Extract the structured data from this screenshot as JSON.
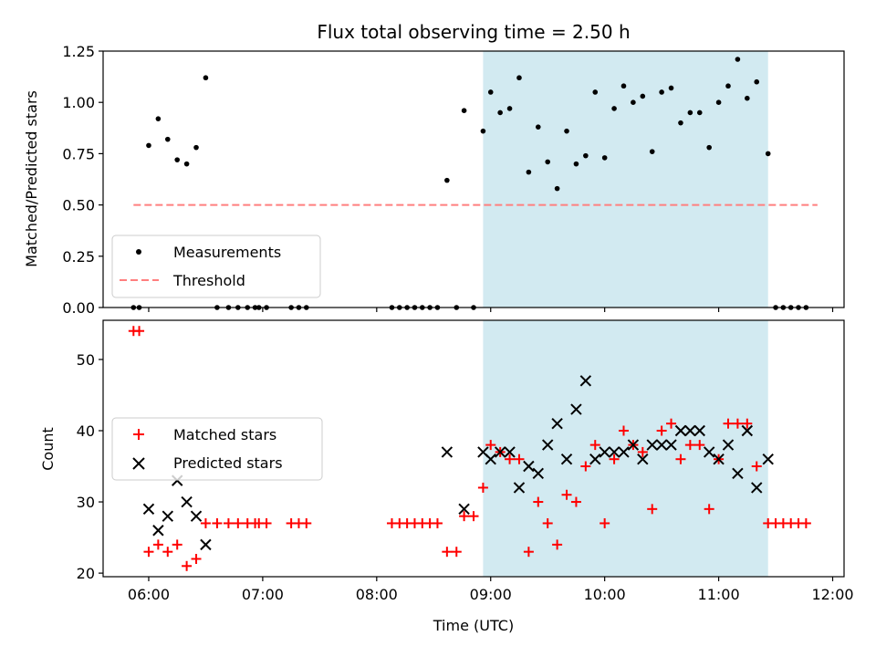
{
  "chart_data": [
    {
      "type": "scatter",
      "title": "Flux total observing time = 2.50 h",
      "xlabel": "",
      "ylabel": "Matched/Predicted stars",
      "x_is_time": true,
      "xlim": [
        "05:36",
        "12:06"
      ],
      "ylim": [
        0,
        1.25
      ],
      "yticks": [
        0.0,
        0.25,
        0.5,
        0.75,
        1.0,
        1.25
      ],
      "ytick_labels": [
        "0.00",
        "0.25",
        "0.50",
        "0.75",
        "1.00",
        "1.25"
      ],
      "xticks": [
        "06:00",
        "07:00",
        "08:00",
        "09:00",
        "10:00",
        "11:00",
        "12:00"
      ],
      "shaded_span": {
        "start": "08:56",
        "end": "11:26",
        "color": "#add8e6"
      },
      "legend_position": "lower left",
      "series": [
        {
          "name": "Measurements",
          "style": "dot",
          "color": "#000000",
          "x": [
            "05:52",
            "05:55",
            "06:00",
            "06:05",
            "06:10",
            "06:15",
            "06:20",
            "06:25",
            "06:30",
            "06:36",
            "06:42",
            "06:47",
            "06:52",
            "06:56",
            "06:58",
            "07:02",
            "07:15",
            "07:19",
            "07:23",
            "08:08",
            "08:12",
            "08:16",
            "08:20",
            "08:24",
            "08:28",
            "08:32",
            "08:37",
            "08:42",
            "08:46",
            "08:51",
            "08:56",
            "09:00",
            "09:05",
            "09:10",
            "09:15",
            "09:20",
            "09:25",
            "09:30",
            "09:35",
            "09:40",
            "09:45",
            "09:50",
            "09:55",
            "10:00",
            "10:05",
            "10:10",
            "10:15",
            "10:20",
            "10:25",
            "10:30",
            "10:35",
            "10:40",
            "10:45",
            "10:50",
            "10:55",
            "11:00",
            "11:05",
            "11:10",
            "11:15",
            "11:20",
            "11:26",
            "11:30",
            "11:34",
            "11:38",
            "11:42",
            "11:46"
          ],
          "y": [
            0,
            0,
            0.79,
            0.92,
            0.82,
            0.72,
            0.7,
            0.78,
            1.12,
            0,
            0,
            0,
            0,
            0,
            0,
            0,
            0,
            0,
            0,
            0,
            0,
            0,
            0,
            0,
            0,
            0,
            0.62,
            0,
            0.96,
            0,
            0.86,
            1.05,
            0.95,
            0.97,
            1.12,
            0.66,
            0.88,
            0.71,
            0.58,
            0.86,
            0.7,
            0.74,
            1.05,
            0.73,
            0.97,
            1.08,
            1.0,
            1.03,
            0.76,
            1.05,
            1.07,
            0.9,
            0.95,
            0.95,
            0.78,
            1.0,
            1.08,
            1.21,
            1.02,
            1.1,
            0.75,
            0,
            0,
            0,
            0,
            0
          ]
        },
        {
          "name": "Threshold",
          "style": "dashed-line",
          "color": "#ff7f7f",
          "x": [
            "05:52",
            "11:52"
          ],
          "y": [
            0.5,
            0.5
          ]
        }
      ]
    },
    {
      "type": "scatter",
      "title": "",
      "xlabel": "Time (UTC)",
      "ylabel": "Count",
      "x_is_time": true,
      "xlim": [
        "05:36",
        "12:06"
      ],
      "ylim": [
        19.5,
        55.5
      ],
      "yticks": [
        20,
        30,
        40,
        50
      ],
      "ytick_labels": [
        "20",
        "30",
        "40",
        "50"
      ],
      "xticks": [
        "06:00",
        "07:00",
        "08:00",
        "09:00",
        "10:00",
        "11:00",
        "12:00"
      ],
      "xtick_labels": [
        "06:00",
        "07:00",
        "08:00",
        "09:00",
        "10:00",
        "11:00",
        "12:00"
      ],
      "shaded_span": {
        "start": "08:56",
        "end": "11:26",
        "color": "#add8e6"
      },
      "legend_position": "center left",
      "series": [
        {
          "name": "Matched stars",
          "style": "plus",
          "color": "#ff0000",
          "x": [
            "05:52",
            "05:55",
            "06:00",
            "06:05",
            "06:10",
            "06:15",
            "06:20",
            "06:25",
            "06:30",
            "06:36",
            "06:42",
            "06:47",
            "06:52",
            "06:56",
            "06:58",
            "07:02",
            "07:15",
            "07:19",
            "07:23",
            "08:08",
            "08:12",
            "08:16",
            "08:20",
            "08:24",
            "08:28",
            "08:32",
            "08:37",
            "08:42",
            "08:46",
            "08:51",
            "08:56",
            "09:00",
            "09:05",
            "09:10",
            "09:15",
            "09:20",
            "09:25",
            "09:30",
            "09:35",
            "09:40",
            "09:45",
            "09:50",
            "09:55",
            "10:00",
            "10:05",
            "10:10",
            "10:15",
            "10:20",
            "10:25",
            "10:30",
            "10:35",
            "10:40",
            "10:45",
            "10:50",
            "10:55",
            "11:00",
            "11:05",
            "11:10",
            "11:15",
            "11:20",
            "11:26",
            "11:30",
            "11:34",
            "11:38",
            "11:42",
            "11:46"
          ],
          "y": [
            54,
            54,
            23,
            24,
            23,
            24,
            21,
            22,
            27,
            27,
            27,
            27,
            27,
            27,
            27,
            27,
            27,
            27,
            27,
            27,
            27,
            27,
            27,
            27,
            27,
            27,
            23,
            23,
            28,
            28,
            32,
            38,
            37,
            36,
            36,
            23,
            30,
            27,
            24,
            31,
            30,
            35,
            38,
            27,
            36,
            40,
            38,
            37,
            29,
            40,
            41,
            36,
            38,
            38,
            29,
            36,
            41,
            41,
            41,
            35,
            27,
            27,
            27,
            27,
            27,
            27
          ]
        },
        {
          "name": "Predicted stars",
          "style": "x",
          "color": "#000000",
          "x": [
            "06:00",
            "06:05",
            "06:10",
            "06:15",
            "06:20",
            "06:25",
            "06:30",
            "08:37",
            "08:46",
            "08:56",
            "09:00",
            "09:05",
            "09:10",
            "09:15",
            "09:20",
            "09:25",
            "09:30",
            "09:35",
            "09:40",
            "09:45",
            "09:50",
            "09:55",
            "10:00",
            "10:05",
            "10:10",
            "10:15",
            "10:20",
            "10:25",
            "10:30",
            "10:35",
            "10:40",
            "10:45",
            "10:50",
            "10:55",
            "11:00",
            "11:05",
            "11:10",
            "11:15",
            "11:20",
            "11:26"
          ],
          "y": [
            29,
            26,
            28,
            33,
            30,
            28,
            24,
            37,
            29,
            37,
            36,
            37,
            37,
            32,
            35,
            34,
            38,
            41,
            36,
            43,
            47,
            36,
            37,
            37,
            37,
            38,
            36,
            38,
            38,
            38,
            40,
            40,
            40,
            37,
            36,
            38,
            34,
            40,
            32,
            36
          ]
        }
      ]
    }
  ]
}
